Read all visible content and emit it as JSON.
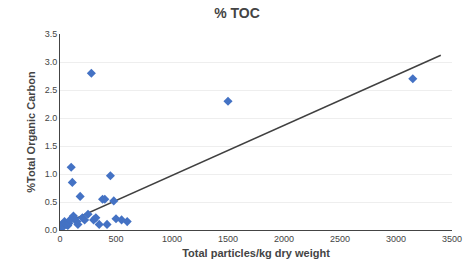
{
  "chart_data": {
    "type": "scatter",
    "title": "% TOC",
    "xlabel": "Total particles/kg dry weight",
    "ylabel": "%Total Organic Carbon",
    "xlim": [
      0,
      3500
    ],
    "ylim": [
      0,
      3.5
    ],
    "xticks": [
      0,
      500,
      1000,
      1500,
      2000,
      2500,
      3000,
      3500
    ],
    "yticks": [
      {
        "value": 0,
        "label": "0.0"
      },
      0.5,
      {
        "value": 1.0,
        "label": "1.0"
      },
      1.5,
      {
        "value": 2.0,
        "label": "2.0"
      },
      2.5,
      {
        "value": 3.0,
        "label": "3.0"
      },
      3.5
    ],
    "grid": "y",
    "series": [
      {
        "type": "line",
        "color": "#404040",
        "x": [
          0,
          3400
        ],
        "values": [
          0.08,
          3.12
        ]
      },
      {
        "type": "scatter",
        "color": "#4472C4",
        "marker": "diamond",
        "x": [
          10,
          15,
          20,
          25,
          30,
          35,
          40,
          50,
          60,
          70,
          80,
          90,
          100,
          110,
          120,
          130,
          150,
          160,
          180,
          200,
          220,
          250,
          280,
          300,
          320,
          350,
          380,
          400,
          420,
          450,
          480,
          500,
          550,
          600,
          1500,
          3150
        ],
        "values": [
          0.05,
          0.07,
          0.1,
          0.08,
          0.06,
          0.1,
          0.15,
          0.12,
          0.1,
          0.08,
          0.12,
          0.18,
          1.12,
          0.85,
          0.25,
          0.2,
          0.15,
          0.1,
          0.6,
          0.22,
          0.18,
          0.28,
          2.8,
          0.18,
          0.22,
          0.1,
          0.55,
          0.55,
          0.1,
          0.97,
          0.52,
          0.2,
          0.18,
          0.15,
          2.3,
          2.7
        ]
      }
    ]
  }
}
